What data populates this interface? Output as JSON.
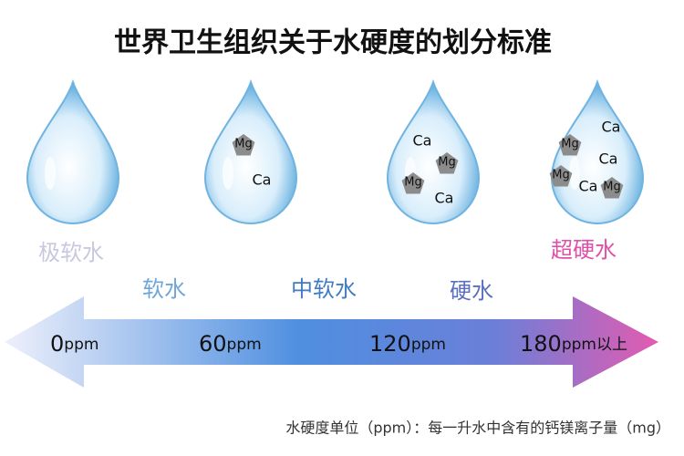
{
  "title": "世界卫生组织关于水硬度的划分标准",
  "drops": [
    {
      "ions": []
    },
    {
      "ions": [
        "Mg",
        "Ca"
      ]
    },
    {
      "ions": [
        "Ca",
        "Mg",
        "Mg",
        "Ca"
      ]
    },
    {
      "ions": [
        "Ca",
        "Mg",
        "Ca",
        "Mg",
        "Ca",
        "Mg"
      ]
    }
  ],
  "categories": [
    "极软水",
    "软水",
    "中软水",
    "硬水",
    "超硬水"
  ],
  "scale_labels": [
    {
      "number": "0",
      "unit": "ppm"
    },
    {
      "number": "60",
      "unit": "ppm"
    },
    {
      "number": "120",
      "unit": "ppm"
    },
    {
      "number": "180",
      "unit": "ppm以上"
    }
  ],
  "footnote": "水硬度单位（ppm）：每一升水中含有的钙镁离子量（mg）"
}
